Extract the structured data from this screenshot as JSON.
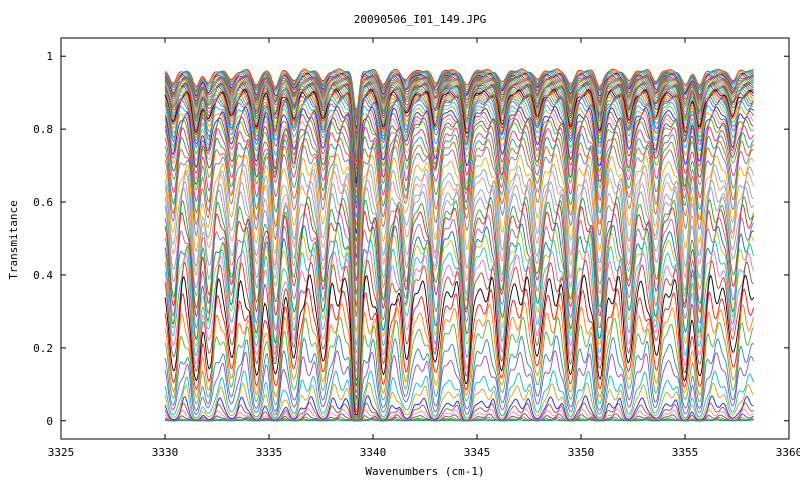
{
  "chart_data": {
    "type": "line",
    "title": "20090506_I01_149.JPG",
    "xlabel": "Wavenumbers (cm-1)",
    "ylabel": "Transmitance",
    "xlim": [
      3325,
      3360
    ],
    "ylim": [
      -0.05,
      1.05
    ],
    "x_ticks": [
      "3325",
      "3330",
      "3335",
      "3340",
      "3345",
      "3350",
      "3355",
      "3360"
    ],
    "y_ticks": [
      "0",
      "0.2",
      "0.4",
      "0.6",
      "0.8",
      "1"
    ],
    "x_tick_values": [
      3325,
      3330,
      3335,
      3340,
      3345,
      3350,
      3355,
      3360
    ],
    "y_tick_values": [
      0,
      0.2,
      0.4,
      0.6,
      0.8,
      1
    ],
    "data_range": [
      3330,
      3358.3
    ],
    "absorption_lines": [
      3330.4,
      3331.5,
      3332.1,
      3333.2,
      3334.4,
      3335.3,
      3336.2,
      3337.6,
      3339.2,
      3340.5,
      3341.6,
      3343.0,
      3344.5,
      3346.2,
      3347.9,
      3349.5,
      3350.9,
      3352.3,
      3353.6,
      3355.0,
      3355.7,
      3357.3
    ],
    "strong_line": 3339.2,
    "series_baselines": [
      1.0,
      0.998,
      0.996,
      0.994,
      0.992,
      0.99,
      0.988,
      0.986,
      0.984,
      0.982,
      0.98,
      0.978,
      0.976,
      0.974,
      0.972,
      0.97,
      0.968,
      0.966,
      0.964,
      0.962,
      0.96,
      0.958,
      0.955,
      0.952,
      0.949,
      0.946,
      0.943,
      0.94,
      0.937,
      0.934,
      0.93,
      0.925,
      0.92,
      0.915,
      0.91,
      0.9,
      0.89,
      0.88,
      0.87,
      0.86,
      0.85,
      0.84,
      0.82,
      0.8,
      0.78,
      0.76,
      0.73,
      0.7,
      0.68,
      0.65,
      0.63,
      0.6,
      0.58,
      0.55,
      0.52,
      0.5,
      0.47,
      0.44,
      0.41,
      0.37,
      0.33,
      0.29,
      0.25,
      0.2,
      0.16,
      0.11,
      0.08,
      0.05,
      0.035,
      0.022,
      0.012,
      0.006,
      0.003,
      0.001
    ],
    "colors": [
      "#e41a1c",
      "#ff7f00",
      "#4daf4a",
      "#377eb8",
      "#984ea3",
      "#00bcd4",
      "#d4a017",
      "#1a1aff",
      "#a65628",
      "#f781bf",
      "#555555",
      "#66a61e",
      "#e7298a",
      "#1b9e77",
      "#d95f02",
      "#7570b3",
      "#e6ab02",
      "#6baed6",
      "#fc8d62",
      "#8da0cb",
      "#999999",
      "#2ca02c",
      "#d62728",
      "#9467bd",
      "#008080",
      "#bcbd22",
      "#17becf",
      "#ff69b4",
      "#a0522d",
      "#000000"
    ],
    "grid": false,
    "legend": "none"
  }
}
